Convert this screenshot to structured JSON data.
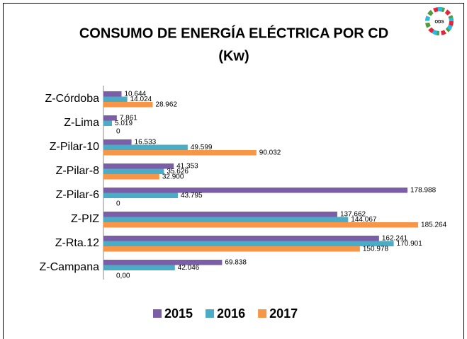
{
  "chart_data": {
    "type": "hbar",
    "title": "CONSUMO DE ENERGÍA ELÉCTRICA POR CD",
    "subtitle": "(Kw)",
    "logo_text": "ODS",
    "categories": [
      "Z-Córdoba",
      "Z-Lima",
      "Z-Pilar-10",
      "Z-Pilar-8",
      "Z-Pilar-6",
      "Z-PIZ",
      "Z-Rta.12",
      "Z-Campana"
    ],
    "series": [
      {
        "name": "2015",
        "color": "#7b5ea7",
        "values": [
          10644,
          7861,
          16533,
          41353,
          178988,
          137662,
          162241,
          69838
        ],
        "value_labels": [
          "10.644",
          "7.861",
          "16.533",
          "41.353",
          "178.988",
          "137.662",
          "162.241",
          "69.838"
        ]
      },
      {
        "name": "2016",
        "color": "#4bacc6",
        "values": [
          14024,
          5019,
          49599,
          35626,
          43795,
          144067,
          170901,
          42046
        ],
        "value_labels": [
          "14.024",
          "5.019",
          "49.599",
          "35.626",
          "43.795",
          "144.067",
          "170.901",
          "42.046"
        ]
      },
      {
        "name": "2017",
        "color": "#f79646",
        "values": [
          28962,
          0,
          90032,
          32900,
          0,
          185264,
          150978,
          0
        ],
        "value_labels": [
          "28.962",
          "0",
          "90.032",
          "32.900",
          "0",
          "185.264",
          "150.978",
          "0,00"
        ]
      }
    ],
    "legend": "bottom"
  }
}
